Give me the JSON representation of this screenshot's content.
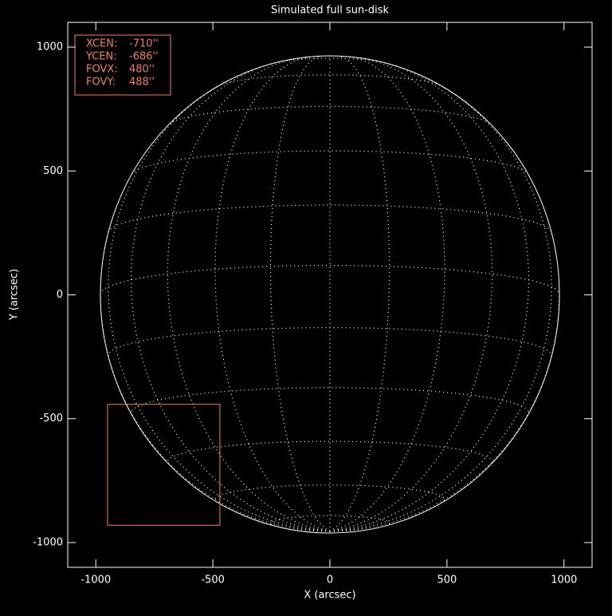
{
  "chart_data": {
    "type": "sun-disk",
    "title": "Simulated full sun-disk",
    "x_label": "X (arcsec)",
    "y_label": "Y (arcsec)",
    "xlim": [
      -1120,
      1120
    ],
    "ylim": [
      -1100,
      1100
    ],
    "xticks": [
      -1000,
      -500,
      0,
      500,
      1000
    ],
    "yticks": [
      -1000,
      -500,
      0,
      500,
      1000
    ],
    "box_color": "#f08060",
    "fov": [
      {
        "name": "XCEN:",
        "value": -710,
        "label": "-710''"
      },
      {
        "name": "YCEN:",
        "value": -686,
        "label": "-686''"
      },
      {
        "name": "FOVX:",
        "value": 480,
        "label": "480''"
      },
      {
        "name": "FOVY:",
        "value": 488,
        "label": "488''"
      }
    ]
  }
}
